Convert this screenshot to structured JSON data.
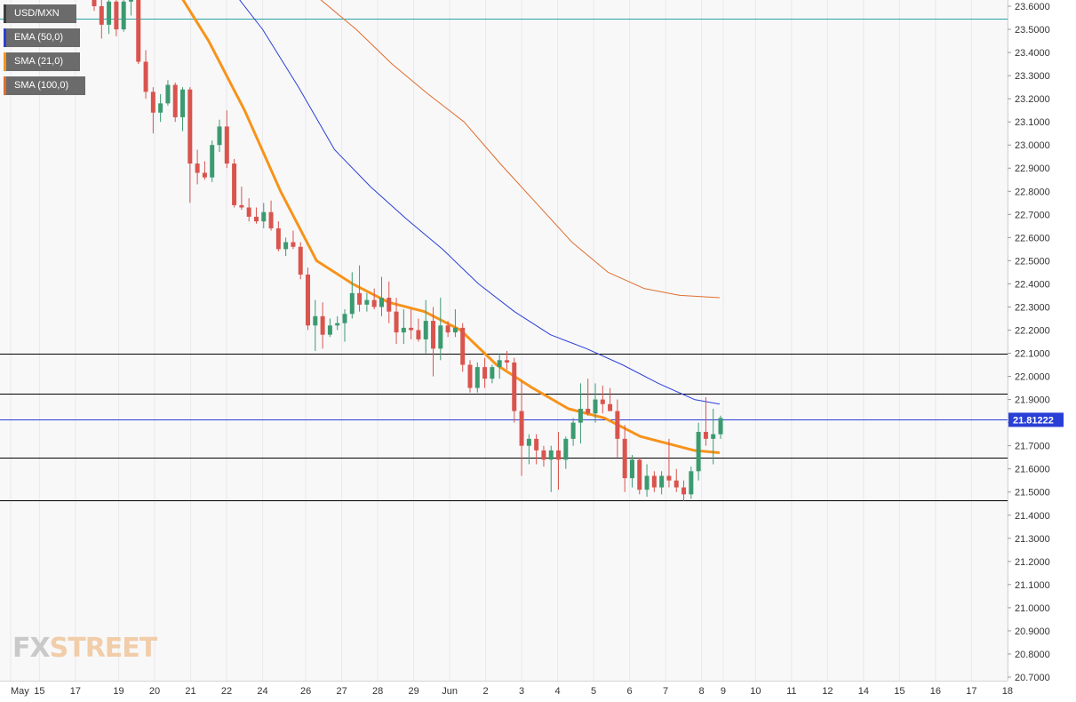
{
  "chart_data": {
    "type": "candlestick",
    "symbol": "USD/MXN",
    "legend": [
      {
        "name": "USD/MXN",
        "color": "#6b6b6b"
      },
      {
        "name": "EMA (50,0)",
        "color": "#2a3fd6"
      },
      {
        "name": "SMA (21,0)",
        "color": "#f7931a"
      },
      {
        "name": "SMA (100,0)",
        "color": "#e06d2b"
      }
    ],
    "current_price": "21.81222",
    "ylim": [
      20.7,
      23.6
    ],
    "y_ticks": [
      "23.6000",
      "23.5000",
      "23.4000",
      "23.3000",
      "23.2000",
      "23.1000",
      "23.0000",
      "22.9000",
      "22.8000",
      "22.7000",
      "22.6000",
      "22.5000",
      "22.4000",
      "22.3000",
      "22.2000",
      "22.1000",
      "22.0000",
      "21.9000",
      "21.8000",
      "21.7000",
      "21.6000",
      "21.5000",
      "21.4000",
      "21.3000",
      "21.2000",
      "21.1000",
      "21.0000",
      "20.9000",
      "20.8000",
      "20.7000"
    ],
    "x_ticks": [
      {
        "label": "May",
        "slot": 0
      },
      {
        "label": "15",
        "slot": 0.8
      },
      {
        "label": "17",
        "slot": 1.8
      },
      {
        "label": "19",
        "slot": 3.0
      },
      {
        "label": "20",
        "slot": 4.0
      },
      {
        "label": "21",
        "slot": 5.0
      },
      {
        "label": "22",
        "slot": 6.0
      },
      {
        "label": "24",
        "slot": 7.0
      },
      {
        "label": "26",
        "slot": 8.2
      },
      {
        "label": "27",
        "slot": 9.2
      },
      {
        "label": "28",
        "slot": 10.2
      },
      {
        "label": "29",
        "slot": 11.2
      },
      {
        "label": "Jun",
        "slot": 12.2
      },
      {
        "label": "2",
        "slot": 13.2
      },
      {
        "label": "3",
        "slot": 14.2
      },
      {
        "label": "4",
        "slot": 15.2
      },
      {
        "label": "5",
        "slot": 16.2
      },
      {
        "label": "6",
        "slot": 17.2
      },
      {
        "label": "7",
        "slot": 18.2
      },
      {
        "label": "8",
        "slot": 19.2
      },
      {
        "label": "9",
        "slot": 19.8
      },
      {
        "label": "10",
        "slot": 20.7
      },
      {
        "label": "11",
        "slot": 21.7
      },
      {
        "label": "12",
        "slot": 22.7
      },
      {
        "label": "14",
        "slot": 23.7
      },
      {
        "label": "15",
        "slot": 24.7
      },
      {
        "label": "16",
        "slot": 25.7
      },
      {
        "label": "17",
        "slot": 26.7
      },
      {
        "label": "18",
        "slot": 27.7
      }
    ],
    "horizontal_lines": [
      {
        "value": 23.545,
        "color": "#2aa3a8"
      },
      {
        "value": 22.1,
        "color": "#000000"
      },
      {
        "value": 21.925,
        "color": "#000000"
      },
      {
        "value": 21.81222,
        "color": "#2a3fd6"
      },
      {
        "value": 21.65,
        "color": "#000000"
      },
      {
        "value": 21.465,
        "color": "#000000"
      }
    ],
    "ohlc": [
      [
        23.68,
        23.71,
        23.58,
        23.6
      ],
      [
        23.6,
        23.66,
        23.46,
        23.52
      ],
      [
        23.52,
        23.64,
        23.48,
        23.62
      ],
      [
        23.62,
        23.69,
        23.47,
        23.5
      ],
      [
        23.5,
        23.66,
        23.49,
        23.62
      ],
      [
        23.62,
        23.7,
        23.56,
        23.63
      ],
      [
        23.63,
        23.66,
        23.35,
        23.36
      ],
      [
        23.36,
        23.41,
        23.2,
        23.23
      ],
      [
        23.23,
        23.25,
        23.05,
        23.14
      ],
      [
        23.14,
        23.22,
        23.1,
        23.18
      ],
      [
        23.18,
        23.28,
        23.17,
        23.26
      ],
      [
        23.26,
        23.27,
        23.1,
        23.12
      ],
      [
        23.12,
        23.25,
        23.06,
        23.24
      ],
      [
        23.24,
        23.25,
        22.75,
        22.92
      ],
      [
        22.92,
        22.98,
        22.83,
        22.88
      ],
      [
        22.88,
        22.93,
        22.85,
        22.86
      ],
      [
        22.86,
        23.02,
        22.84,
        23.0
      ],
      [
        23.0,
        23.11,
        22.97,
        23.08
      ],
      [
        23.08,
        23.15,
        22.9,
        22.92
      ],
      [
        22.92,
        22.94,
        22.73,
        22.74
      ],
      [
        22.74,
        22.82,
        22.72,
        22.73
      ],
      [
        22.73,
        22.77,
        22.67,
        22.69
      ],
      [
        22.69,
        22.73,
        22.66,
        22.67
      ],
      [
        22.67,
        22.75,
        22.64,
        22.71
      ],
      [
        22.71,
        22.76,
        22.63,
        22.64
      ],
      [
        22.64,
        22.67,
        22.54,
        22.55
      ],
      [
        22.55,
        22.6,
        22.52,
        22.58
      ],
      [
        22.58,
        22.63,
        22.55,
        22.56
      ],
      [
        22.56,
        22.58,
        22.42,
        22.44
      ],
      [
        22.44,
        22.47,
        22.2,
        22.22
      ],
      [
        22.22,
        22.33,
        22.11,
        22.26
      ],
      [
        22.26,
        22.32,
        22.12,
        22.18
      ],
      [
        22.18,
        22.25,
        22.17,
        22.22
      ],
      [
        22.22,
        22.26,
        22.2,
        22.23
      ],
      [
        22.23,
        22.29,
        22.15,
        22.27
      ],
      [
        22.27,
        22.45,
        22.25,
        22.36
      ],
      [
        22.36,
        22.48,
        22.28,
        22.31
      ],
      [
        22.31,
        22.36,
        22.28,
        22.33
      ],
      [
        22.33,
        22.38,
        22.29,
        22.3
      ],
      [
        22.3,
        22.43,
        22.26,
        22.34
      ],
      [
        22.34,
        22.41,
        22.23,
        22.28
      ],
      [
        22.28,
        22.34,
        22.14,
        22.19
      ],
      [
        22.19,
        22.29,
        22.14,
        22.21
      ],
      [
        22.21,
        22.29,
        22.16,
        22.2
      ],
      [
        22.2,
        22.25,
        22.15,
        22.16
      ],
      [
        22.16,
        22.33,
        22.1,
        22.24
      ],
      [
        22.24,
        22.3,
        22.0,
        22.12
      ],
      [
        22.12,
        22.34,
        22.07,
        22.22
      ],
      [
        22.22,
        22.24,
        22.17,
        22.19
      ],
      [
        22.19,
        22.29,
        22.17,
        22.21
      ],
      [
        22.21,
        22.23,
        22.02,
        22.05
      ],
      [
        22.05,
        22.07,
        21.93,
        21.95
      ],
      [
        21.95,
        22.06,
        21.93,
        22.04
      ],
      [
        22.04,
        22.08,
        21.95,
        21.99
      ],
      [
        21.99,
        22.05,
        21.97,
        22.04
      ],
      [
        22.04,
        22.1,
        21.99,
        22.07
      ],
      [
        22.07,
        22.11,
        22.03,
        22.06
      ],
      [
        22.06,
        22.08,
        21.8,
        21.85
      ],
      [
        21.85,
        21.98,
        21.57,
        21.7
      ],
      [
        21.7,
        21.75,
        21.62,
        21.73
      ],
      [
        21.73,
        21.75,
        21.62,
        21.68
      ],
      [
        21.68,
        21.7,
        21.61,
        21.64
      ],
      [
        21.64,
        21.7,
        21.5,
        21.68
      ],
      [
        21.68,
        21.76,
        21.51,
        21.64
      ],
      [
        21.64,
        21.74,
        21.6,
        21.73
      ],
      [
        21.73,
        21.82,
        21.7,
        21.8
      ],
      [
        21.8,
        21.97,
        21.71,
        21.86
      ],
      [
        21.86,
        21.99,
        21.83,
        21.84
      ],
      [
        21.84,
        21.97,
        21.8,
        21.9
      ],
      [
        21.9,
        21.96,
        21.84,
        21.88
      ],
      [
        21.88,
        21.95,
        21.85,
        21.85
      ],
      [
        21.85,
        21.9,
        21.65,
        21.73
      ],
      [
        21.73,
        21.79,
        21.5,
        21.56
      ],
      [
        21.56,
        21.66,
        21.52,
        21.64
      ],
      [
        21.64,
        21.65,
        21.49,
        21.51
      ],
      [
        21.51,
        21.62,
        21.48,
        21.57
      ],
      [
        21.57,
        21.59,
        21.5,
        21.52
      ],
      [
        21.52,
        21.59,
        21.49,
        21.57
      ],
      [
        21.57,
        21.73,
        21.52,
        21.55
      ],
      [
        21.55,
        21.6,
        21.5,
        21.52
      ],
      [
        21.52,
        21.55,
        21.46,
        21.49
      ],
      [
        21.49,
        21.61,
        21.47,
        21.59
      ],
      [
        21.59,
        21.8,
        21.55,
        21.76
      ],
      [
        21.76,
        21.91,
        21.7,
        21.73
      ],
      [
        21.73,
        21.86,
        21.62,
        21.75
      ],
      [
        21.75,
        21.83,
        21.73,
        21.82
      ]
    ],
    "ema50": [
      [
        6.0,
        23.7
      ],
      [
        7.0,
        23.5
      ],
      [
        8.0,
        23.25
      ],
      [
        9.0,
        22.98
      ],
      [
        10.0,
        22.82
      ],
      [
        11.0,
        22.68
      ],
      [
        12.0,
        22.55
      ],
      [
        13.0,
        22.4
      ],
      [
        14.0,
        22.28
      ],
      [
        15.0,
        22.18
      ],
      [
        16.0,
        22.12
      ],
      [
        17.0,
        22.05
      ],
      [
        18.0,
        21.97
      ],
      [
        19.0,
        21.9
      ],
      [
        19.7,
        21.88
      ]
    ],
    "sma21": [
      [
        4.5,
        23.7
      ],
      [
        5.5,
        23.45
      ],
      [
        6.5,
        23.15
      ],
      [
        7.5,
        22.8
      ],
      [
        8.5,
        22.5
      ],
      [
        9.5,
        22.4
      ],
      [
        10.5,
        22.32
      ],
      [
        11.5,
        22.28
      ],
      [
        12.5,
        22.2
      ],
      [
        13.5,
        22.05
      ],
      [
        14.5,
        21.95
      ],
      [
        15.5,
        21.86
      ],
      [
        16.5,
        21.82
      ],
      [
        17.5,
        21.74
      ],
      [
        18.5,
        21.7
      ],
      [
        19.0,
        21.68
      ],
      [
        19.7,
        21.67
      ]
    ],
    "sma100": [
      [
        8.6,
        23.63
      ],
      [
        9.6,
        23.5
      ],
      [
        10.6,
        23.35
      ],
      [
        11.6,
        23.22
      ],
      [
        12.6,
        23.1
      ],
      [
        13.6,
        22.92
      ],
      [
        14.6,
        22.75
      ],
      [
        15.6,
        22.58
      ],
      [
        16.6,
        22.45
      ],
      [
        17.6,
        22.38
      ],
      [
        18.6,
        22.35
      ],
      [
        19.7,
        22.34
      ]
    ]
  },
  "watermark": {
    "part1": "FX",
    "part2": "STREET"
  }
}
